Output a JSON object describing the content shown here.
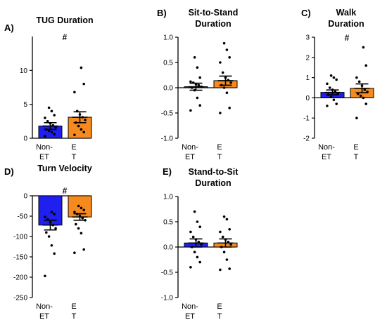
{
  "colors": {
    "non_et": "#1f1ff0",
    "et": "#f68a1f",
    "dots": "#000000",
    "axis": "#000000"
  },
  "chart_data": [
    {
      "type": "bar",
      "panel": "A)",
      "title": [
        "TUG Duration"
      ],
      "categories": [
        "Non-ET",
        "ET"
      ],
      "category_label_lines": [
        [
          "Non-",
          "ET"
        ],
        [
          "E",
          "T"
        ]
      ],
      "values": [
        1.8,
        3.1
      ],
      "sem": [
        0.5,
        0.8
      ],
      "ylim": [
        0,
        15
      ],
      "yticks": [
        0,
        5,
        10
      ],
      "significance": "#",
      "points": [
        [
          0.3,
          0.6,
          0.9,
          1.1,
          1.3,
          1.6,
          1.9,
          2.2,
          2.5,
          3.0,
          3.4,
          4.0,
          4.5
        ],
        [
          0.5,
          0.9,
          1.3,
          1.8,
          2.3,
          2.7,
          3.1,
          3.5,
          4.0,
          6.8,
          8.0,
          10.4
        ]
      ]
    },
    {
      "type": "bar",
      "panel": "B)",
      "title": [
        "Sit-to-Stand",
        "Duration"
      ],
      "categories": [
        "Non-ET",
        "ET"
      ],
      "category_label_lines": [
        [
          "Non-",
          "ET"
        ],
        [
          "E",
          "T"
        ]
      ],
      "values": [
        0.02,
        0.14
      ],
      "sem": [
        0.07,
        0.09
      ],
      "ylim": [
        -1.0,
        1.0
      ],
      "yticks": [
        -1.0,
        -0.5,
        0.0,
        0.5,
        1.0
      ],
      "significance": "",
      "points": [
        [
          -0.45,
          -0.35,
          -0.2,
          -0.05,
          0.0,
          0.02,
          0.05,
          0.07,
          0.1,
          0.12,
          0.2,
          0.4,
          0.6
        ],
        [
          -0.5,
          -0.4,
          -0.1,
          0.0,
          0.05,
          0.1,
          0.15,
          0.2,
          0.3,
          0.5,
          0.6,
          0.75,
          0.88
        ]
      ]
    },
    {
      "type": "bar",
      "panel": "C)",
      "title": [
        "Walk",
        "Duration"
      ],
      "categories": [
        "Non-ET",
        "ET"
      ],
      "category_label_lines": [
        [
          "Non-",
          "ET"
        ],
        [
          "E",
          "T"
        ]
      ],
      "values": [
        0.27,
        0.47
      ],
      "sem": [
        0.12,
        0.22
      ],
      "ylim": [
        -2,
        3
      ],
      "yticks": [
        -2,
        -1,
        0,
        1,
        2,
        3
      ],
      "significance": "#",
      "points": [
        [
          -0.4,
          -0.3,
          -0.1,
          0.05,
          0.15,
          0.2,
          0.3,
          0.4,
          0.5,
          0.7,
          0.9,
          1.0,
          1.1
        ],
        [
          -1.0,
          -0.3,
          0.0,
          0.1,
          0.2,
          0.3,
          0.4,
          0.6,
          0.8,
          1.0,
          1.6,
          2.5
        ]
      ]
    },
    {
      "type": "bar",
      "panel": "D)",
      "title": [
        "Turn Velocity"
      ],
      "categories": [
        "Non-ET",
        "ET"
      ],
      "category_label_lines": [
        [
          "Non-",
          "ET"
        ],
        [
          "E",
          "T"
        ]
      ],
      "values": [
        -72,
        -52
      ],
      "sem": [
        12,
        8
      ],
      "ylim": [
        -250,
        0
      ],
      "yticks": [
        -250,
        -200,
        -150,
        -100,
        -50,
        0
      ],
      "significance": "#",
      "points": [
        [
          -197,
          -142,
          -122,
          -100,
          -90,
          -80,
          -72,
          -65,
          -58,
          -52,
          -45,
          -40
        ],
        [
          -140,
          -132,
          -92,
          -80,
          -70,
          -60,
          -55,
          -50,
          -45,
          -40,
          -35,
          -30,
          -25
        ]
      ]
    },
    {
      "type": "bar",
      "panel": "E)",
      "title": [
        "Stand-to-Sit",
        "Duration"
      ],
      "categories": [
        "Non-ET",
        "ET"
      ],
      "category_label_lines": [
        [
          "Non-",
          "ET"
        ],
        [
          "E",
          "T"
        ]
      ],
      "values": [
        0.08,
        0.08
      ],
      "sem": [
        0.08,
        0.08
      ],
      "ylim": [
        -1.0,
        1.0
      ],
      "yticks": [
        -1.0,
        -0.5,
        0.0,
        0.5,
        1.0
      ],
      "significance": "",
      "points": [
        [
          -0.4,
          -0.3,
          -0.2,
          -0.1,
          0.0,
          0.05,
          0.1,
          0.15,
          0.2,
          0.3,
          0.4,
          0.5,
          0.7
        ],
        [
          -0.45,
          -0.43,
          -0.25,
          -0.1,
          0.0,
          0.05,
          0.1,
          0.15,
          0.2,
          0.3,
          0.35,
          0.55,
          0.6
        ]
      ]
    }
  ]
}
